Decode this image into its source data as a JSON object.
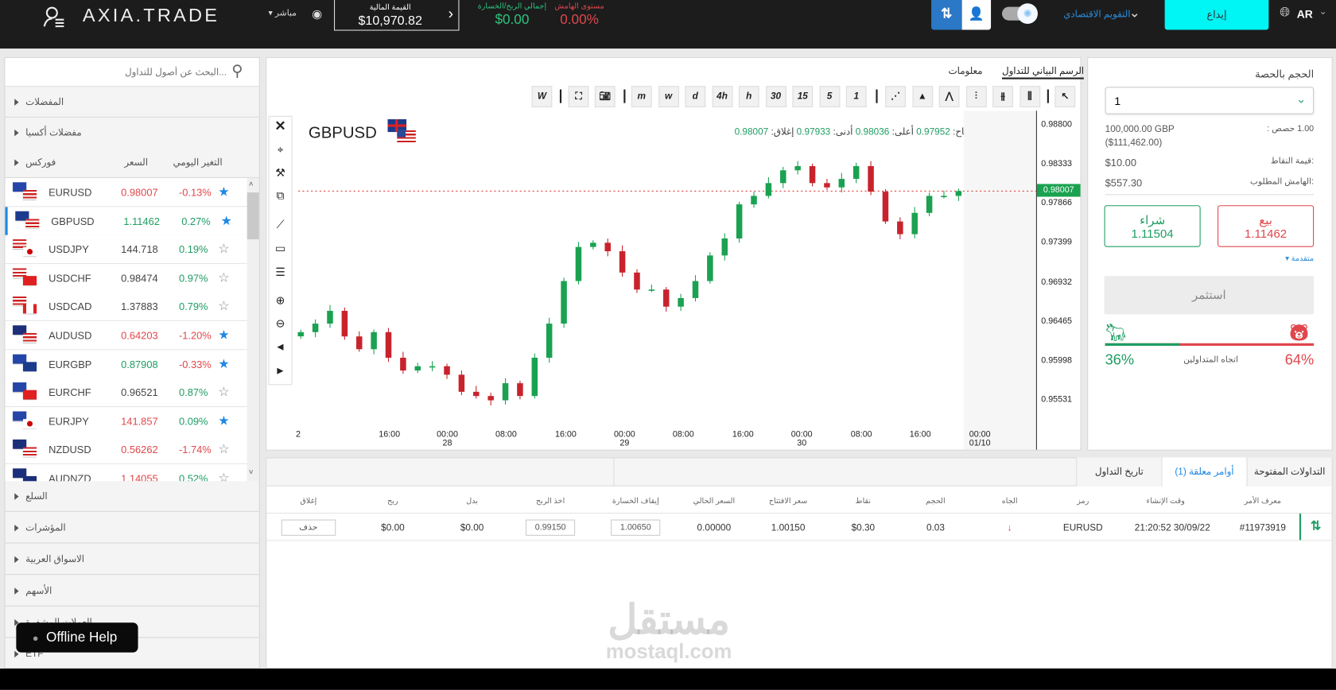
{
  "topbar": {
    "logo": "AXIA.TRADE",
    "mode": "مباشر",
    "balance_label": "القيمة المالية",
    "balance": "$10,970.82",
    "pnl_label": "إجمالي الربح/الخسارة",
    "pnl": "$0.00",
    "margin_label": "مستوى الهامش",
    "margin": "0.00%",
    "calendar": "التقويم الاقتصادي",
    "deposit": "إيداع",
    "lang": "AR"
  },
  "sidebar": {
    "search_placeholder": "البحث عن أصول للتداول...",
    "sections_top": [
      "المفضلات",
      "مفضلات أكسيا"
    ],
    "forex": {
      "title": "فوركس",
      "price_header": "السعر",
      "change_header": "التغير اليومي"
    },
    "rows": [
      {
        "symbol": "EURUSD",
        "price": "0.98007",
        "change": "-0.13%",
        "price_dir": "down",
        "starred": true
      },
      {
        "symbol": "GBPUSD",
        "price": "1.11462",
        "change": "0.27%",
        "price_dir": "up",
        "starred": true,
        "selected": true
      },
      {
        "symbol": "USDJPY",
        "price": "144.718",
        "change": "0.19%",
        "price_dir": "flat",
        "starred": false
      },
      {
        "symbol": "USDCHF",
        "price": "0.98474",
        "change": "0.97%",
        "price_dir": "flat",
        "starred": false
      },
      {
        "symbol": "USDCAD",
        "price": "1.37883",
        "change": "0.79%",
        "price_dir": "flat",
        "starred": false
      },
      {
        "symbol": "AUDUSD",
        "price": "0.64203",
        "change": "-1.20%",
        "price_dir": "down",
        "starred": true
      },
      {
        "symbol": "EURGBP",
        "price": "0.87908",
        "change": "-0.33%",
        "price_dir": "up",
        "starred": true
      },
      {
        "symbol": "EURCHF",
        "price": "0.96521",
        "change": "0.87%",
        "price_dir": "flat",
        "starred": false
      },
      {
        "symbol": "EURJPY",
        "price": "141.857",
        "change": "0.09%",
        "price_dir": "down",
        "starred": true
      },
      {
        "symbol": "NZDUSD",
        "price": "0.56262",
        "change": "-1.74%",
        "price_dir": "down",
        "starred": false
      },
      {
        "symbol": "AUDNZD",
        "price": "1.14055",
        "change": "0.52%",
        "price_dir": "down",
        "starred": false
      }
    ],
    "sections_bottom": [
      "السلع",
      "المؤشرات",
      "الاسواق العربية",
      "الأسهم",
      "العملات المشفرة",
      "ETF"
    ]
  },
  "help": {
    "label": "Offline Help"
  },
  "chart": {
    "tabs": [
      "الرسم البياني للتداول",
      "معلومات"
    ],
    "toolbar": [
      "W",
      "m",
      "w",
      "d",
      "4h",
      "h",
      "30",
      "15",
      "5",
      "1"
    ],
    "symbol": "GBPUSD",
    "ohlc": {
      "open_label": "افتتاح:",
      "open": "0.97952",
      "high_label": "أعلى:",
      "high": "0.98036",
      "low_label": "أدنى:",
      "low": "0.97933",
      "close_label": "إغلاق:",
      "close": "0.98007"
    },
    "current_price": "0.98007",
    "y_ticks": [
      "0.98800",
      "0.98333",
      "0.97866",
      "0.97399",
      "0.96932",
      "0.96465",
      "0.95998",
      "0.95531"
    ],
    "x_ticks": [
      [
        "2",
        ""
      ],
      [
        "16:00",
        ""
      ],
      [
        "00:00",
        "28"
      ],
      [
        "08:00",
        ""
      ],
      [
        "16:00",
        ""
      ],
      [
        "00:00",
        "29"
      ],
      [
        "08:00",
        ""
      ],
      [
        "16:00",
        ""
      ],
      [
        "00:00",
        "30"
      ],
      [
        "08:00",
        ""
      ],
      [
        "16:00",
        ""
      ],
      [
        "00:00",
        "01/10"
      ]
    ]
  },
  "chart_data": {
    "type": "candlestick",
    "ylim": [
      0.95531,
      0.988
    ],
    "closes": [
      0.96331,
      0.96432,
      0.96584,
      0.9628,
      0.96128,
      0.96331,
      0.96027,
      0.95875,
      0.95926,
      0.95926,
      0.95825,
      0.95622,
      0.95572,
      0.95521,
      0.95724,
      0.95572,
      0.96027,
      0.96432,
      0.96938,
      0.97343,
      0.97393,
      0.97292,
      0.97039,
      0.96837,
      0.96837,
      0.96634,
      0.96736,
      0.96938,
      0.97242,
      0.97444,
      0.97849,
      0.9795,
      0.98102,
      0.98254,
      0.98304,
      0.98102,
      0.98051,
      0.98152,
      0.98304,
      0.98,
      0.97646,
      0.97495,
      0.97748,
      0.9795,
      0.9795,
      0.98007
    ],
    "up_color": "#1aa251",
    "down_color": "#c8232c"
  },
  "order": {
    "volume_label": "الحجم بالحصة",
    "volume": "1",
    "lots_label": "1.00 حصص :",
    "lots_value": "100,000.00 GBP",
    "lots_usd": "($111,462.00)",
    "pip_label": "قيمة النقاط:",
    "pip_value": "$10.00",
    "margin_label": "الهامش المطلوب:",
    "margin_value": "$557.30",
    "buy_label": "شراء",
    "buy_price": "1.11504",
    "sell_label": "بيع",
    "sell_price": "1.11462",
    "advanced": "متقدمة",
    "invest": "استثمر",
    "sentiment_label": "اتجاه المتداولين",
    "bull_pct": 36,
    "bear_pct": 64,
    "bull_text": "36%",
    "bear_text": "64%"
  },
  "trades": {
    "tabs": [
      "التداولات المفتوحة",
      "أوامر معلقة (1)",
      "تاريخ التداول"
    ],
    "active_tab": 1,
    "columns": [
      "معرف الأمر",
      "وقت الإنشاء",
      "رمز",
      "الجاه",
      "الحجم",
      "نقاط",
      "سعر الافتتاح",
      "السعر الحالي",
      "إيقاف الخسارة",
      "اخذ الربح",
      "بدل",
      "ربح",
      "إغلاق"
    ],
    "rows": [
      {
        "id": "#11973919",
        "time": "21:20:52 30/09/22",
        "symbol": "EURUSD",
        "direction": "down",
        "volume": "0.03",
        "points": "$0.30",
        "open": "1.00150",
        "current": "0.00000",
        "sl": "1.00650",
        "tp": "0.99150",
        "swap": "$0.00",
        "profit": "$0.00",
        "close": "حذف"
      }
    ]
  },
  "watermark": {
    "ar": "مستقل",
    "en": "mostaql.com"
  }
}
